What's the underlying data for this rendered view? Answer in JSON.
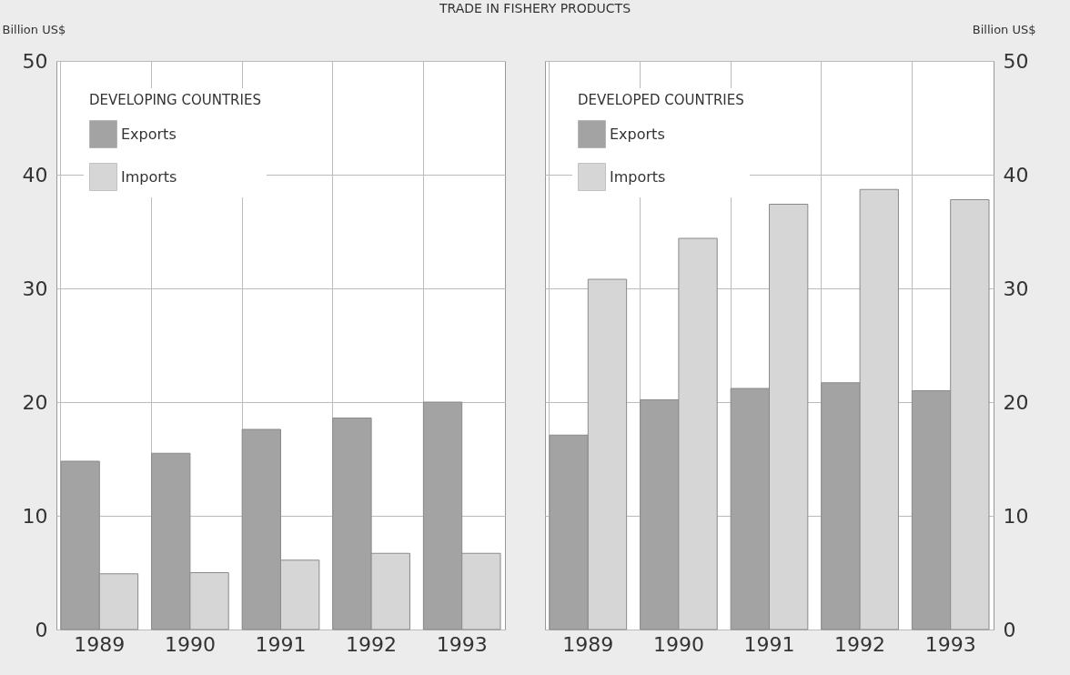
{
  "chart_data": [
    {
      "type": "bar",
      "title": "TRADE IN FISHERY PRODUCTS",
      "legend_title": "DEVELOPING COUNTRIES",
      "ylabel": "Billion US$",
      "categories": [
        "1989",
        "1990",
        "1991",
        "1992",
        "1993"
      ],
      "series": [
        {
          "name": "Exports",
          "color": "#a3a3a3",
          "values": [
            14.8,
            15.5,
            17.6,
            18.6,
            20.0
          ]
        },
        {
          "name": "Imports",
          "color": "#d6d6d6",
          "values": [
            4.9,
            5.0,
            6.1,
            6.7,
            6.7
          ]
        }
      ],
      "ylim": [
        0,
        50
      ],
      "yticks": [
        0,
        10,
        20,
        30,
        40,
        50
      ],
      "grid": true,
      "legend": "top left"
    },
    {
      "type": "bar",
      "legend_title": "DEVELOPED COUNTRIES",
      "y2label": "Billion US$",
      "categories": [
        "1989",
        "1990",
        "1991",
        "1992",
        "1993"
      ],
      "series": [
        {
          "name": "Exports",
          "color": "#a3a3a3",
          "axis": "y2",
          "values": [
            17.1,
            20.2,
            21.2,
            21.7,
            21.0
          ]
        },
        {
          "name": "Imports",
          "color": "#d6d6d6",
          "axis": "y2",
          "values": [
            30.8,
            34.4,
            37.4,
            38.7,
            37.8
          ]
        }
      ],
      "y2lim": [
        0,
        50
      ],
      "y2ticks": [
        0,
        10,
        20,
        30,
        40,
        50
      ],
      "grid": true,
      "legend": "top left"
    }
  ]
}
